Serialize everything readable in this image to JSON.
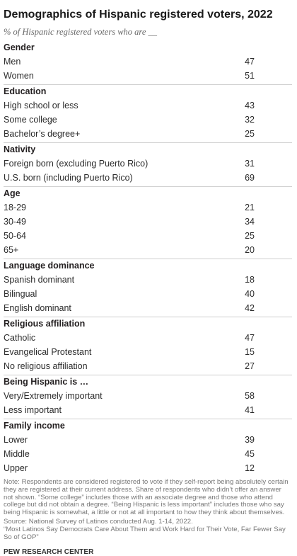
{
  "title": "Demographics of Hispanic registered voters, 2022",
  "subtitle": "% of Hispanic registered voters who are __",
  "sections": [
    {
      "heading": "Gender",
      "rows": [
        {
          "label": "Men",
          "value": "47"
        },
        {
          "label": "Women",
          "value": "51"
        }
      ]
    },
    {
      "heading": "Education",
      "rows": [
        {
          "label": "High school or less",
          "value": "43"
        },
        {
          "label": "Some college",
          "value": "32"
        },
        {
          "label": "Bachelor’s degree+",
          "value": "25"
        }
      ]
    },
    {
      "heading": "Nativity",
      "rows": [
        {
          "label": "Foreign born (excluding Puerto Rico)",
          "value": "31"
        },
        {
          "label": "U.S. born (including Puerto Rico)",
          "value": "69"
        }
      ]
    },
    {
      "heading": "Age",
      "rows": [
        {
          "label": "18-29",
          "value": "21"
        },
        {
          "label": "30-49",
          "value": "34"
        },
        {
          "label": "50-64",
          "value": "25"
        },
        {
          "label": "65+",
          "value": "20"
        }
      ]
    },
    {
      "heading": "Language dominance",
      "rows": [
        {
          "label": "Spanish dominant",
          "value": "18"
        },
        {
          "label": "Bilingual",
          "value": "40"
        },
        {
          "label": "English dominant",
          "value": "42"
        }
      ]
    },
    {
      "heading": "Religious affiliation",
      "rows": [
        {
          "label": "Catholic",
          "value": "47"
        },
        {
          "label": "Evangelical Protestant",
          "value": "15"
        },
        {
          "label": "No religious affiliation",
          "value": "27"
        }
      ]
    },
    {
      "heading": "Being Hispanic is …",
      "rows": [
        {
          "label": "Very/Extremely important",
          "value": "58"
        },
        {
          "label": "Less important",
          "value": "41"
        }
      ]
    },
    {
      "heading": "Family income",
      "rows": [
        {
          "label": "Lower",
          "value": "39"
        },
        {
          "label": "Middle",
          "value": "45"
        },
        {
          "label": "Upper",
          "value": "12"
        }
      ]
    }
  ],
  "notes": {
    "note": "Note: Respondents are considered registered to vote if they self-report being absolutely certain they are registered at their current address. Share of respondents who didn’t offer an answer not shown. “Some college” includes those with an associate degree and those who attend college but did not obtain a degree. “Being Hispanic is less important” includes those who say being Hispanic is somewhat, a little or not at all important to how they think about themselves.",
    "source": "Source: National Survey of Latinos conducted Aug. 1-14, 2022.",
    "report": "“Most Latinos Say Democrats Care About Them and Work Hard for Their Vote, Far Fewer Say So of GOP”"
  },
  "footer": "PEW RESEARCH CENTER"
}
